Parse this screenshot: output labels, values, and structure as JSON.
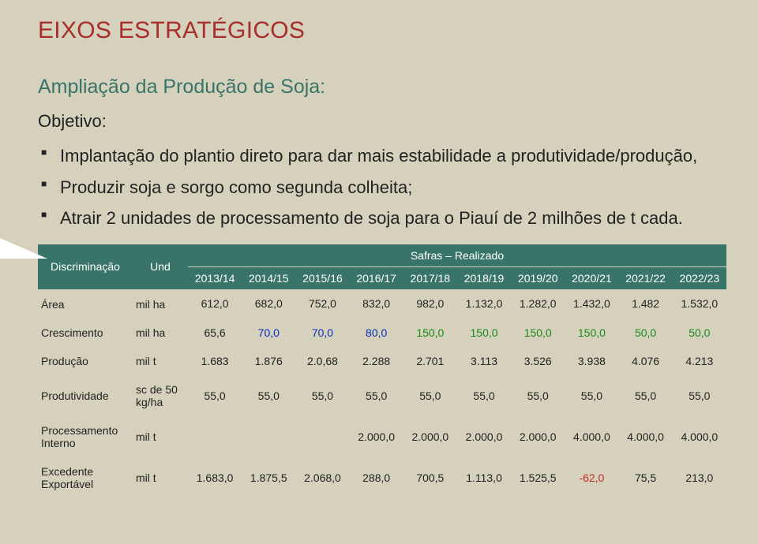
{
  "main_title": "EIXOS ESTRATÉGICOS",
  "sub_title": "Ampliação da Produção de Soja:",
  "objective_label": "Objetivo:",
  "bullets": [
    "Implantação do plantio direto para dar mais estabilidade a produtividade/produção,",
    "Produzir soja e sorgo como segunda colheita;",
    "Atrair 2 unidades de processamento de soja para o Piauí de 2 milhões de t cada."
  ],
  "table": {
    "header": {
      "disc": "Discriminação",
      "und": "Und",
      "safras": "Safras – Realizado",
      "years": [
        "2013/14",
        "2014/15",
        "2015/16",
        "2016/17",
        "2017/18",
        "2018/19",
        "2019/20",
        "2020/21",
        "2021/22",
        "2022/23"
      ]
    },
    "rows": [
      {
        "label": "Área",
        "und": "mil ha",
        "vals": [
          "612,0",
          "682,0",
          "752,0",
          "832,0",
          "982,0",
          "1.132,0",
          "1.282,0",
          "1.432,0",
          "1.482",
          "1.532,0"
        ],
        "cls": [
          "",
          "",
          "",
          "",
          "",
          "",
          "",
          "",
          "",
          ""
        ]
      },
      {
        "label": "Crescimento",
        "und": "mil ha",
        "vals": [
          "65,6",
          "70,0",
          "70,0",
          "80,0",
          "150,0",
          "150,0",
          "150,0",
          "150,0",
          "50,0",
          "50,0"
        ],
        "cls": [
          "",
          "blue",
          "blue",
          "blue",
          "green",
          "green",
          "green",
          "green",
          "green",
          "green"
        ]
      },
      {
        "label": "Produção",
        "und": "mil t",
        "vals": [
          "1.683",
          "1.876",
          "2.0,68",
          "2.288",
          "2.701",
          "3.113",
          "3.526",
          "3.938",
          "4.076",
          "4.213"
        ],
        "cls": [
          "",
          "",
          "",
          "",
          "",
          "",
          "",
          "",
          "",
          ""
        ]
      },
      {
        "label": "Produtividade",
        "und": "sc de 50 kg/ha",
        "vals": [
          "55,0",
          "55,0",
          "55,0",
          "55,0",
          "55,0",
          "55,0",
          "55,0",
          "55,0",
          "55,0",
          "55,0"
        ],
        "cls": [
          "",
          "",
          "",
          "",
          "",
          "",
          "",
          "",
          "",
          ""
        ]
      },
      {
        "label": "Processamento Interno",
        "und": "mil t",
        "vals": [
          "",
          "",
          "",
          "2.000,0",
          "2.000,0",
          "2.000,0",
          "2.000,0",
          "4.000,0",
          "4.000,0",
          "4.000,0"
        ],
        "cls": [
          "",
          "",
          "",
          "",
          "",
          "",
          "",
          "",
          "",
          ""
        ]
      },
      {
        "label": "Excedente Exportável",
        "und": "mil t",
        "vals": [
          "1.683,0",
          "1.875,5",
          "2.068,0",
          "288,0",
          "700,5",
          "1.113,0",
          "1.525,5",
          "-62,0",
          "75,5",
          "213,0"
        ],
        "cls": [
          "",
          "",
          "",
          "",
          "",
          "",
          "",
          "red",
          "",
          ""
        ]
      }
    ]
  }
}
